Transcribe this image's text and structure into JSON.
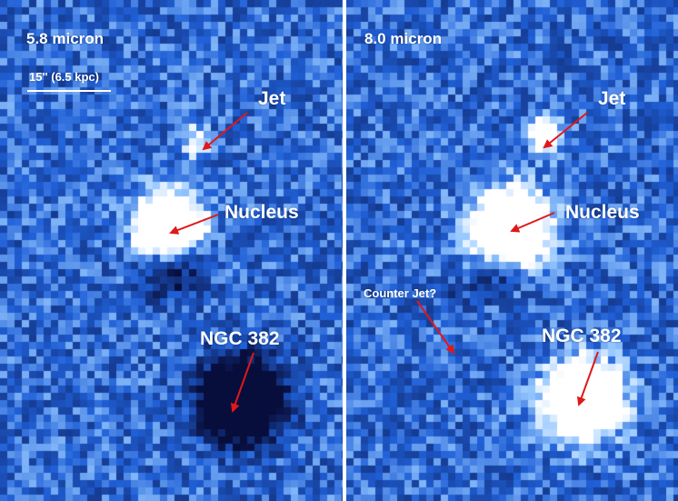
{
  "colors": {
    "background_blue": "#1f5fd6",
    "arrow_red": "#e01818",
    "text_white": "#ffffff",
    "divider_white": "#ffffff"
  },
  "left_panel": {
    "title": "5.8 micron",
    "scale_bar_label": "15\" (6.5 kpc)",
    "labels": {
      "jet": "Jet",
      "nucleus": "Nucleus",
      "ngc": "NGC 382"
    }
  },
  "right_panel": {
    "title": "8.0 micron",
    "labels": {
      "jet": "Jet",
      "nucleus": "Nucleus",
      "counter_jet": "Counter Jet?",
      "ngc": "NGC 382"
    }
  }
}
